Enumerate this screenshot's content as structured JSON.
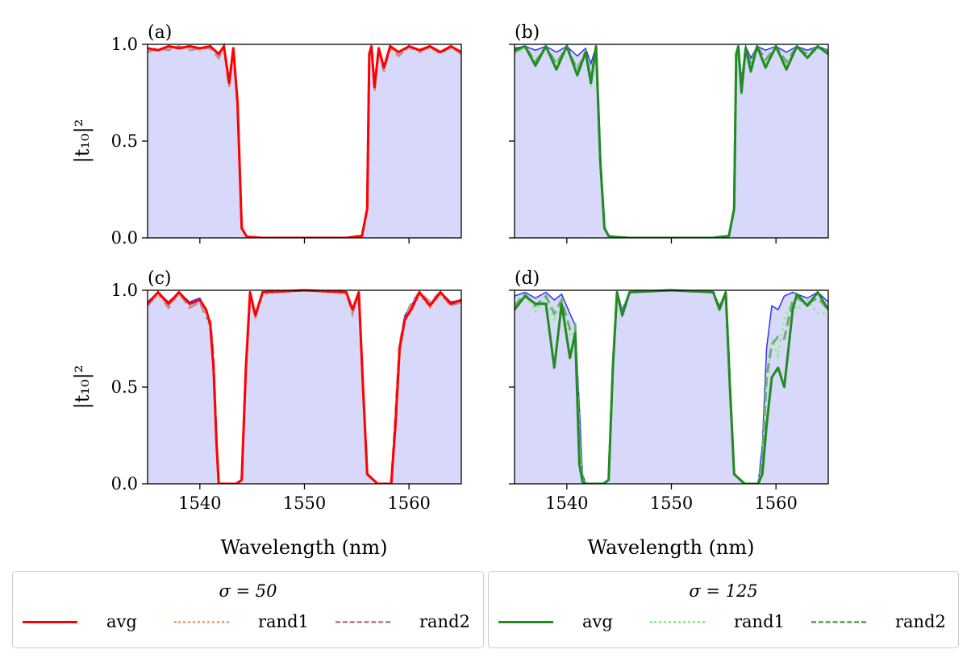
{
  "chart_data": [
    {
      "type": "line",
      "panel_label": "(a)",
      "sigma_group": "sigma50",
      "xlim": [
        1535,
        1565
      ],
      "ylim": [
        0,
        1
      ],
      "x": [
        1535,
        1536,
        1537,
        1538,
        1539,
        1540,
        1541,
        1541.8,
        1542.3,
        1542.8,
        1543.2,
        1543.6,
        1544,
        1544.5,
        1546,
        1550,
        1554,
        1555.5,
        1556,
        1556.2,
        1556.4,
        1556.7,
        1557.1,
        1557.6,
        1558.2,
        1559,
        1560,
        1561,
        1562,
        1563,
        1564,
        1565
      ],
      "reference": [
        0.98,
        0.97,
        0.99,
        0.98,
        0.99,
        0.98,
        0.99,
        0.95,
        0.99,
        0.79,
        0.98,
        0.7,
        0.05,
        0.005,
        0,
        0,
        0,
        0.01,
        0.15,
        0.95,
        0.99,
        0.77,
        0.98,
        0.88,
        0.99,
        0.96,
        0.99,
        0.97,
        0.99,
        0.96,
        0.99,
        0.96
      ],
      "avg": [
        0.98,
        0.97,
        0.99,
        0.98,
        0.99,
        0.98,
        0.99,
        0.95,
        0.99,
        0.8,
        0.98,
        0.7,
        0.05,
        0.005,
        0,
        0,
        0,
        0.01,
        0.15,
        0.95,
        0.99,
        0.78,
        0.98,
        0.88,
        0.99,
        0.96,
        0.99,
        0.97,
        0.99,
        0.96,
        0.99,
        0.96
      ],
      "rand1": [
        0.97,
        0.97,
        0.98,
        0.98,
        0.98,
        0.97,
        0.99,
        0.94,
        0.98,
        0.8,
        0.97,
        0.7,
        0.05,
        0.005,
        0,
        0,
        0,
        0.01,
        0.15,
        0.95,
        0.99,
        0.77,
        0.97,
        0.87,
        0.98,
        0.95,
        0.98,
        0.97,
        0.98,
        0.96,
        0.98,
        0.96
      ],
      "rand2": [
        0.96,
        0.98,
        0.97,
        0.99,
        0.97,
        0.98,
        0.98,
        0.93,
        0.99,
        0.78,
        0.98,
        0.69,
        0.05,
        0.005,
        0,
        0,
        0,
        0.01,
        0.15,
        0.95,
        0.99,
        0.76,
        0.98,
        0.86,
        0.99,
        0.94,
        0.99,
        0.96,
        0.99,
        0.95,
        0.99,
        0.95
      ]
    },
    {
      "type": "line",
      "panel_label": "(b)",
      "sigma_group": "sigma125",
      "xlim": [
        1535,
        1565
      ],
      "ylim": [
        0,
        1
      ],
      "x": [
        1535,
        1536,
        1537,
        1538,
        1539,
        1540,
        1541,
        1541.8,
        1542.3,
        1542.8,
        1543.2,
        1543.6,
        1544,
        1544.5,
        1546,
        1550,
        1554,
        1555.5,
        1556,
        1556.2,
        1556.4,
        1556.7,
        1557.1,
        1557.6,
        1558.2,
        1559,
        1560,
        1561,
        1562,
        1563,
        1564,
        1565
      ],
      "reference": [
        0.98,
        0.99,
        0.97,
        0.99,
        0.96,
        0.99,
        0.94,
        0.98,
        0.9,
        0.99,
        0.4,
        0.05,
        0.01,
        0.005,
        0,
        0,
        0,
        0.01,
        0.15,
        0.95,
        0.99,
        0.82,
        0.99,
        0.93,
        0.99,
        0.97,
        0.99,
        0.96,
        0.99,
        0.97,
        0.99,
        0.97
      ],
      "avg": [
        0.97,
        0.99,
        0.89,
        0.99,
        0.87,
        0.99,
        0.84,
        0.96,
        0.8,
        0.99,
        0.4,
        0.05,
        0.01,
        0.005,
        0,
        0,
        0,
        0.01,
        0.15,
        0.95,
        0.99,
        0.75,
        0.98,
        0.86,
        0.99,
        0.88,
        0.99,
        0.87,
        0.99,
        0.93,
        0.99,
        0.95
      ],
      "rand1": [
        0.95,
        0.98,
        0.92,
        0.98,
        0.9,
        0.98,
        0.86,
        0.95,
        0.78,
        0.98,
        0.4,
        0.05,
        0.01,
        0.005,
        0,
        0,
        0,
        0.01,
        0.15,
        0.95,
        0.99,
        0.77,
        0.97,
        0.88,
        0.98,
        0.9,
        0.97,
        0.9,
        0.98,
        0.94,
        0.98,
        0.95
      ],
      "rand2": [
        0.96,
        0.99,
        0.91,
        0.99,
        0.9,
        0.99,
        0.87,
        0.96,
        0.82,
        0.99,
        0.4,
        0.05,
        0.01,
        0.005,
        0,
        0,
        0,
        0.01,
        0.15,
        0.95,
        0.99,
        0.78,
        0.98,
        0.9,
        0.99,
        0.92,
        0.99,
        0.91,
        0.99,
        0.95,
        0.99,
        0.96
      ]
    },
    {
      "type": "line",
      "panel_label": "(c)",
      "sigma_group": "sigma50",
      "xlim": [
        1535,
        1565
      ],
      "ylim": [
        0,
        1
      ],
      "x": [
        1535,
        1536,
        1537,
        1538,
        1539,
        1540,
        1540.6,
        1541,
        1541.3,
        1541.6,
        1541.8,
        1542.5,
        1543.5,
        1544,
        1544.4,
        1544.8,
        1545.3,
        1546,
        1550,
        1554,
        1554.6,
        1555.2,
        1555.6,
        1556,
        1557,
        1558.3,
        1558.7,
        1559.1,
        1559.6,
        1560.2,
        1561,
        1562,
        1563,
        1564,
        1565
      ],
      "reference": [
        0.94,
        0.99,
        0.94,
        0.99,
        0.94,
        0.96,
        0.9,
        0.82,
        0.6,
        0.2,
        0,
        0,
        0,
        0.02,
        0.6,
        0.99,
        0.88,
        0.99,
        1,
        0.99,
        0.9,
        0.99,
        0.5,
        0.05,
        0,
        0,
        0.3,
        0.72,
        0.87,
        0.92,
        0.99,
        0.93,
        0.99,
        0.94,
        0.95
      ],
      "avg": [
        0.93,
        0.99,
        0.93,
        0.99,
        0.93,
        0.95,
        0.9,
        0.82,
        0.6,
        0.2,
        0,
        0,
        0,
        0.02,
        0.6,
        0.99,
        0.87,
        0.99,
        1,
        0.99,
        0.9,
        0.99,
        0.5,
        0.05,
        0,
        0,
        0.3,
        0.7,
        0.85,
        0.9,
        0.99,
        0.92,
        0.99,
        0.93,
        0.95
      ],
      "rand1": [
        0.92,
        0.98,
        0.92,
        0.98,
        0.92,
        0.94,
        0.88,
        0.8,
        0.6,
        0.2,
        0,
        0,
        0,
        0.02,
        0.6,
        0.98,
        0.86,
        0.98,
        1,
        0.98,
        0.89,
        0.98,
        0.5,
        0.05,
        0,
        0,
        0.3,
        0.68,
        0.84,
        0.89,
        0.98,
        0.91,
        0.98,
        0.92,
        0.94
      ],
      "rand2": [
        0.92,
        0.99,
        0.91,
        0.99,
        0.91,
        0.94,
        0.86,
        0.84,
        0.65,
        0.2,
        0,
        0,
        0,
        0.02,
        0.6,
        0.99,
        0.86,
        0.99,
        1,
        0.99,
        0.88,
        0.99,
        0.5,
        0.05,
        0,
        0,
        0.35,
        0.72,
        0.86,
        0.93,
        0.99,
        0.94,
        0.99,
        0.92,
        0.94
      ]
    },
    {
      "type": "line",
      "panel_label": "(d)",
      "sigma_group": "sigma125",
      "xlim": [
        1535,
        1565
      ],
      "ylim": [
        0,
        1
      ],
      "x": [
        1535,
        1536,
        1537,
        1538,
        1538.8,
        1539.5,
        1540.3,
        1540.8,
        1541.2,
        1541.5,
        1541.8,
        1542.5,
        1543.5,
        1544,
        1544.4,
        1544.8,
        1545.3,
        1546,
        1550,
        1554,
        1554.6,
        1555.2,
        1555.6,
        1556,
        1557,
        1558.3,
        1558.7,
        1559.1,
        1559.6,
        1560.2,
        1560.8,
        1561.6,
        1562,
        1563,
        1564,
        1565
      ],
      "reference": [
        0.97,
        0.99,
        0.96,
        0.99,
        0.95,
        0.98,
        0.88,
        0.82,
        0.4,
        0.05,
        0,
        0,
        0,
        0.02,
        0.6,
        0.99,
        0.9,
        0.99,
        1,
        0.99,
        0.92,
        0.99,
        0.5,
        0.05,
        0,
        0,
        0.2,
        0.7,
        0.92,
        0.9,
        0.97,
        0.99,
        0.98,
        0.96,
        0.99,
        0.94
      ],
      "avg": [
        0.9,
        0.97,
        0.93,
        0.93,
        0.6,
        0.93,
        0.65,
        0.78,
        0.1,
        0.01,
        0,
        0,
        0,
        0.02,
        0.6,
        0.99,
        0.87,
        0.99,
        1,
        0.99,
        0.9,
        0.99,
        0.5,
        0.05,
        0,
        0,
        0.05,
        0.3,
        0.55,
        0.6,
        0.5,
        0.9,
        0.98,
        0.92,
        0.99,
        0.9
      ],
      "rand1": [
        0.93,
        0.98,
        0.89,
        0.96,
        0.84,
        0.94,
        0.76,
        0.8,
        0.2,
        0.02,
        0,
        0,
        0,
        0.02,
        0.6,
        0.99,
        0.88,
        0.99,
        1,
        0.99,
        0.91,
        0.99,
        0.5,
        0.05,
        0,
        0,
        0.1,
        0.5,
        0.75,
        0.66,
        0.85,
        0.95,
        0.9,
        0.95,
        0.88,
        0.88
      ],
      "rand2": [
        0.92,
        0.98,
        0.92,
        0.97,
        0.88,
        0.95,
        0.8,
        0.82,
        0.25,
        0.02,
        0,
        0,
        0,
        0.02,
        0.6,
        0.99,
        0.88,
        0.99,
        1,
        0.99,
        0.91,
        0.99,
        0.5,
        0.05,
        0,
        0,
        0.12,
        0.55,
        0.72,
        0.76,
        0.75,
        0.95,
        0.96,
        0.93,
        0.96,
        0.9
      ]
    }
  ],
  "axes": {
    "ylabel": "|t₁₀|²",
    "xlabel": "Wavelength (nm)",
    "yticks": [
      "0.0",
      "0.5",
      "1.0"
    ],
    "yvals": [
      0,
      0.5,
      1
    ],
    "xticks": [
      "1540",
      "1550",
      "1560"
    ],
    "xvals": [
      1540,
      1550,
      1560
    ]
  },
  "legends": {
    "sigma50": {
      "title": "σ = 50",
      "items": [
        "avg",
        "rand1",
        "rand2"
      ]
    },
    "sigma125": {
      "title": "σ = 125",
      "items": [
        "avg",
        "rand1",
        "rand2"
      ]
    }
  },
  "colors": {
    "fill": "#d8d8fb",
    "reference": "#0000ff",
    "sigma50": {
      "avg": "#ff0000",
      "rand1": "#ffa07a",
      "rand2": "#bc8f8f"
    },
    "sigma125": {
      "avg": "#228b22",
      "rand1": "#90ee90",
      "rand2": "#6fae6f"
    }
  }
}
